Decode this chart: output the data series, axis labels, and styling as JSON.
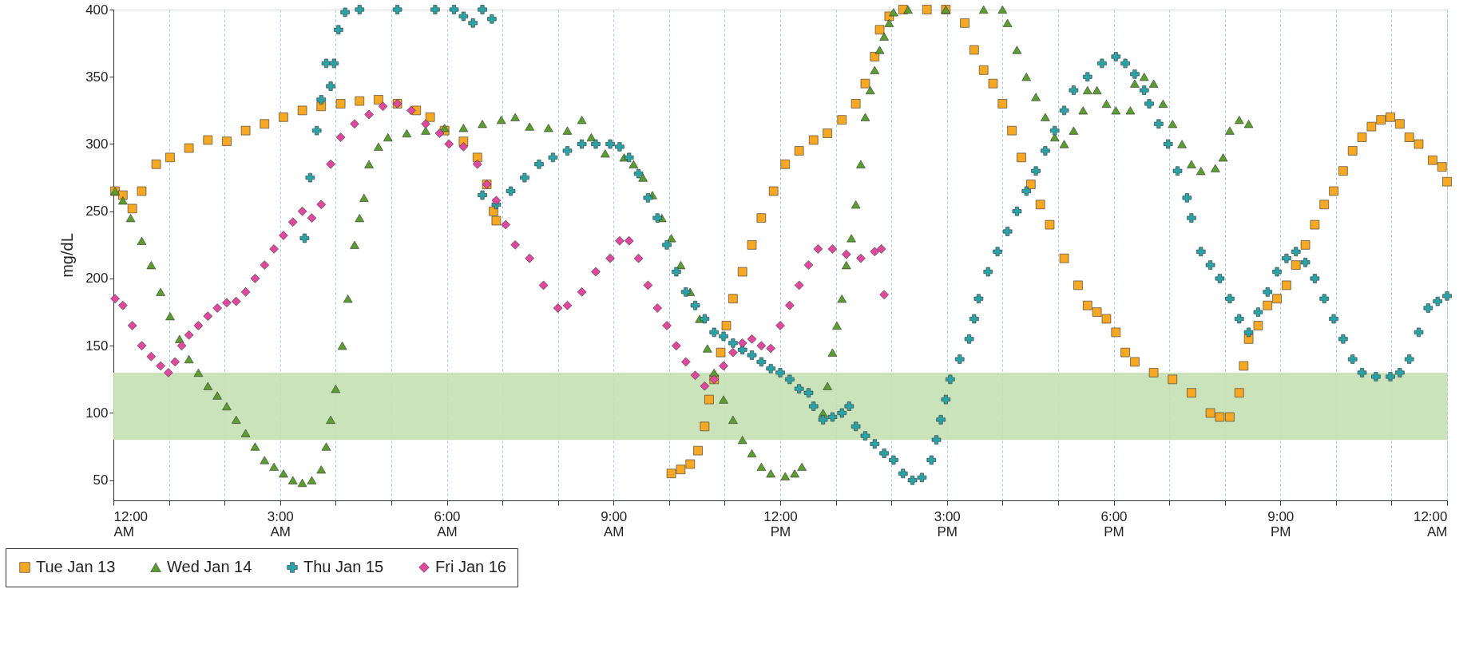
{
  "chart_data": {
    "type": "scatter",
    "ylabel": "mg/dL",
    "xlim": [
      0,
      24
    ],
    "ylim": [
      35,
      400
    ],
    "xticks": [
      {
        "value": 0,
        "label": "12:00 AM"
      },
      {
        "value": 1,
        "label": null
      },
      {
        "value": 2,
        "label": null
      },
      {
        "value": 3,
        "label": "3:00 AM"
      },
      {
        "value": 4,
        "label": null
      },
      {
        "value": 5,
        "label": null
      },
      {
        "value": 6,
        "label": "6:00 AM"
      },
      {
        "value": 7,
        "label": null
      },
      {
        "value": 8,
        "label": null
      },
      {
        "value": 9,
        "label": "9:00 AM"
      },
      {
        "value": 10,
        "label": null
      },
      {
        "value": 11,
        "label": null
      },
      {
        "value": 12,
        "label": "12:00 PM"
      },
      {
        "value": 13,
        "label": null
      },
      {
        "value": 14,
        "label": null
      },
      {
        "value": 15,
        "label": "3:00 PM"
      },
      {
        "value": 16,
        "label": null
      },
      {
        "value": 17,
        "label": null
      },
      {
        "value": 18,
        "label": "6:00 PM"
      },
      {
        "value": 19,
        "label": null
      },
      {
        "value": 20,
        "label": null
      },
      {
        "value": 21,
        "label": "9:00 PM"
      },
      {
        "value": 22,
        "label": null
      },
      {
        "value": 23,
        "label": null
      },
      {
        "value": 24,
        "label": "12:00 AM"
      }
    ],
    "yticks": [
      50,
      100,
      150,
      200,
      250,
      300,
      350,
      400
    ],
    "grid": "x",
    "legend": "bottom left",
    "bands": [
      {
        "axis": "y",
        "from": 80,
        "to": 130,
        "color": "#c5e0b4"
      }
    ],
    "series": [
      {
        "name": "Tue Jan 13",
        "color": "#f7a823",
        "marker": "square",
        "x": [
          0.03,
          0.17,
          0.34,
          0.51,
          0.77,
          1.02,
          1.36,
          1.7,
          2.04,
          2.38,
          2.72,
          3.06,
          3.4,
          3.74,
          4.09,
          4.43,
          4.77,
          5.11,
          5.45,
          5.7,
          5.96,
          6.3,
          6.55,
          6.72,
          6.84,
          6.89,
          10.04,
          10.21,
          10.38,
          10.52,
          10.64,
          10.72,
          10.81,
          10.93,
          11.03,
          11.15,
          11.32,
          11.49,
          11.66,
          11.88,
          12.09,
          12.34,
          12.6,
          12.85,
          13.11,
          13.36,
          13.53,
          13.7,
          13.79,
          13.96,
          14.21,
          14.64,
          14.98,
          15.32,
          15.49,
          15.66,
          15.83,
          16.0,
          16.17,
          16.34,
          16.51,
          16.68,
          16.85,
          17.11,
          17.36,
          17.53,
          17.7,
          17.87,
          18.04,
          18.21,
          18.38,
          18.72,
          19.06,
          19.4,
          19.74,
          19.91,
          20.09,
          20.26,
          20.34,
          20.43,
          20.6,
          20.77,
          20.94,
          21.11,
          21.28,
          21.45,
          21.62,
          21.79,
          21.96,
          22.13,
          22.3,
          22.47,
          22.64,
          22.81,
          22.98,
          23.15,
          23.32,
          23.49,
          23.74,
          23.91,
          24.0
        ],
        "values": [
          265,
          262,
          252,
          265,
          285,
          290,
          297,
          303,
          302,
          310,
          315,
          320,
          325,
          328,
          330,
          332,
          333,
          330,
          325,
          320,
          310,
          302,
          290,
          270,
          250,
          243,
          55,
          58,
          62,
          72,
          90,
          110,
          125,
          145,
          165,
          185,
          205,
          225,
          245,
          265,
          285,
          295,
          303,
          308,
          318,
          330,
          345,
          365,
          385,
          395,
          400,
          400,
          400,
          390,
          370,
          355,
          345,
          330,
          310,
          290,
          270,
          255,
          240,
          215,
          195,
          180,
          175,
          170,
          160,
          145,
          138,
          130,
          125,
          115,
          100,
          97,
          97,
          115,
          135,
          155,
          165,
          180,
          185,
          195,
          210,
          225,
          240,
          255,
          265,
          280,
          295,
          305,
          313,
          318,
          320,
          315,
          305,
          300,
          288,
          283,
          272
        ]
      },
      {
        "name": "Wed Jan 14",
        "color": "#5a9e2f",
        "marker": "triangle",
        "x": [
          0.03,
          0.17,
          0.31,
          0.51,
          0.68,
          0.85,
          1.02,
          1.19,
          1.36,
          1.53,
          1.7,
          1.87,
          2.04,
          2.21,
          2.38,
          2.55,
          2.72,
          2.89,
          3.06,
          3.23,
          3.4,
          3.57,
          3.74,
          3.83,
          3.91,
          4.0,
          4.12,
          4.22,
          4.34,
          4.43,
          4.51,
          4.6,
          4.77,
          4.94,
          5.28,
          5.62,
          5.96,
          6.3,
          6.64,
          6.98,
          7.23,
          7.49,
          7.83,
          8.17,
          8.43,
          8.6,
          8.85,
          9.19,
          9.36,
          9.53,
          9.7,
          9.87,
          10.04,
          10.21,
          10.38,
          10.55,
          10.69,
          10.81,
          10.98,
          11.15,
          11.32,
          11.49,
          11.66,
          11.83,
          12.09,
          12.26,
          12.39,
          12.77,
          12.85,
          12.94,
          13.02,
          13.11,
          13.19,
          13.28,
          13.36,
          13.45,
          13.53,
          13.62,
          13.7,
          13.79,
          13.87,
          13.96,
          14.04,
          14.3,
          14.98,
          15.66,
          16.0,
          16.09,
          16.26,
          16.43,
          16.6,
          16.77,
          16.94,
          17.11,
          17.28,
          17.45,
          17.53,
          17.7,
          17.87,
          18.04,
          18.3,
          18.38,
          18.55,
          18.72,
          18.89,
          19.06,
          19.23,
          19.4,
          19.57,
          19.83,
          19.97,
          20.09,
          20.26,
          20.43
        ],
        "values": [
          265,
          258,
          245,
          228,
          210,
          190,
          172,
          155,
          140,
          130,
          120,
          113,
          105,
          95,
          85,
          75,
          65,
          60,
          55,
          50,
          48,
          50,
          58,
          75,
          95,
          118,
          150,
          185,
          225,
          245,
          260,
          285,
          298,
          305,
          308,
          310,
          312,
          312,
          315,
          318,
          320,
          313,
          312,
          310,
          318,
          305,
          293,
          290,
          285,
          275,
          262,
          245,
          230,
          210,
          190,
          170,
          148,
          130,
          110,
          95,
          80,
          70,
          60,
          55,
          53,
          55,
          60,
          100,
          120,
          145,
          165,
          185,
          210,
          230,
          255,
          285,
          320,
          340,
          355,
          370,
          380,
          390,
          398,
          400,
          400,
          400,
          400,
          390,
          370,
          350,
          335,
          320,
          305,
          300,
          310,
          325,
          340,
          340,
          330,
          325,
          325,
          345,
          350,
          345,
          330,
          315,
          300,
          285,
          280,
          282,
          290,
          310,
          318,
          315
        ]
      },
      {
        "name": "Thu Jan 15",
        "color": "#2aa3a8",
        "marker": "cross",
        "x": [
          3.44,
          3.54,
          3.66,
          3.74,
          3.83,
          3.91,
          3.97,
          4.05,
          4.17,
          4.43,
          5.11,
          5.79,
          6.13,
          6.3,
          6.47,
          6.64,
          6.81,
          6.64,
          6.89,
          7.15,
          7.4,
          7.66,
          7.91,
          8.17,
          8.43,
          8.68,
          8.94,
          9.11,
          9.28,
          9.45,
          9.62,
          9.79,
          9.96,
          10.13,
          10.3,
          10.47,
          10.64,
          10.81,
          10.98,
          11.15,
          11.32,
          11.49,
          11.66,
          11.83,
          12.0,
          12.17,
          12.34,
          12.51,
          12.6,
          12.77,
          12.94,
          13.11,
          13.24,
          13.36,
          13.53,
          13.7,
          13.87,
          14.04,
          14.21,
          14.38,
          14.55,
          14.72,
          14.81,
          14.89,
          14.98,
          15.06,
          15.23,
          15.4,
          15.49,
          15.57,
          15.74,
          15.91,
          16.09,
          16.26,
          16.43,
          16.6,
          16.77,
          16.94,
          17.11,
          17.28,
          17.53,
          17.79,
          18.04,
          18.21,
          18.38,
          18.55,
          18.64,
          18.81,
          18.98,
          19.15,
          19.32,
          19.4,
          19.57,
          19.74,
          19.91,
          20.09,
          20.26,
          20.43,
          20.6,
          20.77,
          20.94,
          21.11,
          21.28,
          21.45,
          21.62,
          21.79,
          21.96,
          22.13,
          22.3,
          22.47,
          22.72,
          22.98,
          23.15,
          23.32,
          23.49,
          23.66,
          23.83,
          24.0
        ],
        "values": [
          230,
          275,
          310,
          333,
          360,
          343,
          360,
          385,
          398,
          400,
          400,
          400,
          400,
          395,
          390,
          400,
          393,
          262,
          255,
          265,
          275,
          285,
          290,
          295,
          300,
          300,
          300,
          298,
          290,
          278,
          260,
          245,
          225,
          205,
          190,
          180,
          170,
          160,
          157,
          152,
          147,
          143,
          138,
          133,
          130,
          125,
          118,
          115,
          105,
          95,
          97,
          100,
          105,
          90,
          83,
          77,
          70,
          65,
          55,
          50,
          52,
          65,
          80,
          95,
          110,
          125,
          140,
          155,
          170,
          185,
          205,
          220,
          235,
          250,
          265,
          280,
          295,
          310,
          325,
          340,
          350,
          360,
          365,
          360,
          352,
          340,
          330,
          315,
          300,
          280,
          260,
          245,
          220,
          210,
          200,
          185,
          170,
          160,
          175,
          190,
          205,
          215,
          220,
          212,
          200,
          185,
          170,
          155,
          140,
          130,
          127,
          127,
          130,
          140,
          160,
          178,
          183,
          187
        ]
      },
      {
        "name": "Fri Jan 16",
        "color": "#e0479e",
        "marker": "diamond",
        "x": [
          0.03,
          0.17,
          0.34,
          0.51,
          0.68,
          0.85,
          0.99,
          1.11,
          1.23,
          1.36,
          1.53,
          1.7,
          1.87,
          2.04,
          2.21,
          2.38,
          2.55,
          2.72,
          2.89,
          3.06,
          3.23,
          3.4,
          3.57,
          3.74,
          3.91,
          4.09,
          4.34,
          4.6,
          4.85,
          5.11,
          5.36,
          5.62,
          5.87,
          6.04,
          6.3,
          6.55,
          6.72,
          6.89,
          7.06,
          7.23,
          7.49,
          7.74,
          8.0,
          8.17,
          8.43,
          8.68,
          8.94,
          9.11,
          9.28,
          9.45,
          9.62,
          9.79,
          9.96,
          10.13,
          10.3,
          10.47,
          10.64,
          10.81,
          10.98,
          11.15,
          11.32,
          11.49,
          11.66,
          11.83,
          12.0,
          12.17,
          12.34,
          12.51,
          12.68,
          12.94,
          13.19,
          13.45,
          13.7,
          13.82,
          13.87
        ],
        "values": [
          185,
          180,
          165,
          150,
          142,
          135,
          130,
          138,
          150,
          158,
          165,
          172,
          178,
          182,
          183,
          190,
          200,
          210,
          222,
          232,
          242,
          250,
          245,
          255,
          285,
          305,
          315,
          322,
          328,
          330,
          325,
          315,
          308,
          300,
          298,
          285,
          270,
          258,
          240,
          225,
          215,
          195,
          178,
          180,
          190,
          205,
          215,
          228,
          228,
          215,
          195,
          178,
          165,
          150,
          138,
          128,
          120,
          125,
          135,
          145,
          152,
          155,
          150,
          148,
          165,
          180,
          195,
          210,
          222,
          222,
          218,
          215,
          220,
          222,
          188
        ]
      }
    ]
  }
}
